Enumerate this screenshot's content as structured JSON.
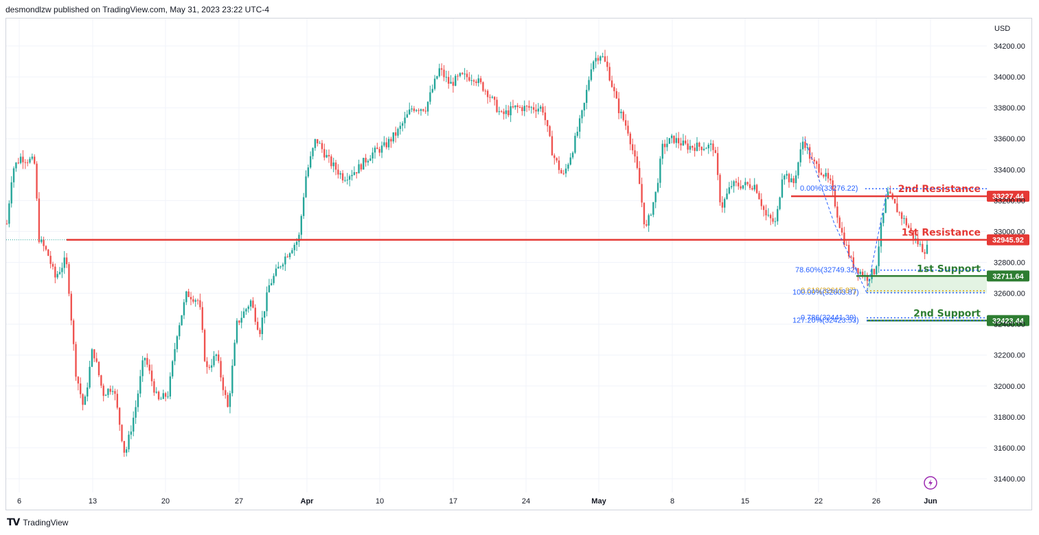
{
  "header": {
    "published": "desmondlzw published on TradingView.com, May 31, 2023 23:22 UTC-4"
  },
  "footer": {
    "brand": "TradingView",
    "logo": "tradingview-logo-icon"
  },
  "colors": {
    "up": "#26a69a",
    "down": "#ef5350",
    "resistance": "#e53935",
    "support": "#2e7d32",
    "fib": "#2962ff",
    "fib_gold": "#d4a017",
    "zone": "#e0f2e0"
  },
  "chart_data": {
    "type": "candlestick",
    "currency": "USD",
    "ylim": [
      31300,
      34350
    ],
    "y_ticks": [
      "34200.00",
      "34000.00",
      "33800.00",
      "33600.00",
      "33400.00",
      "33200.00",
      "33000.00",
      "32800.00",
      "32600.00",
      "32400.00",
      "32200.00",
      "32000.00",
      "31800.00",
      "31600.00",
      "31400.00"
    ],
    "x_ticks": [
      "6",
      "13",
      "20",
      "27",
      "Apr",
      "10",
      "17",
      "24",
      "May",
      "8",
      "15",
      "22",
      "26",
      "Jun"
    ],
    "levels": [
      {
        "name": "2nd Resistance",
        "value": 33227.44,
        "value_label": "33227.44",
        "kind": "resistance"
      },
      {
        "name": "1st Resistance",
        "value": 32945.92,
        "value_label": "32945.92",
        "kind": "resistance"
      },
      {
        "name": "1st Support",
        "value": 32711.64,
        "value_label": "32711.64",
        "kind": "support"
      },
      {
        "name": "2nd Support",
        "value": 32423.44,
        "value_label": "32423.44",
        "kind": "support"
      }
    ],
    "fib_labels": [
      {
        "text": "0.00%(33276.22)",
        "value": 33276.22
      },
      {
        "text": "78.60%(32749.32)",
        "value": 32749.32
      },
      {
        "text": "0.618(32615.87)",
        "value": 32615.87
      },
      {
        "text": "100.00%(32603.87)",
        "value": 32603.87
      },
      {
        "text": "0.786(32441.39)",
        "value": 32441.39
      },
      {
        "text": "127.20%(32423.53)",
        "value": 32423.53
      }
    ]
  }
}
